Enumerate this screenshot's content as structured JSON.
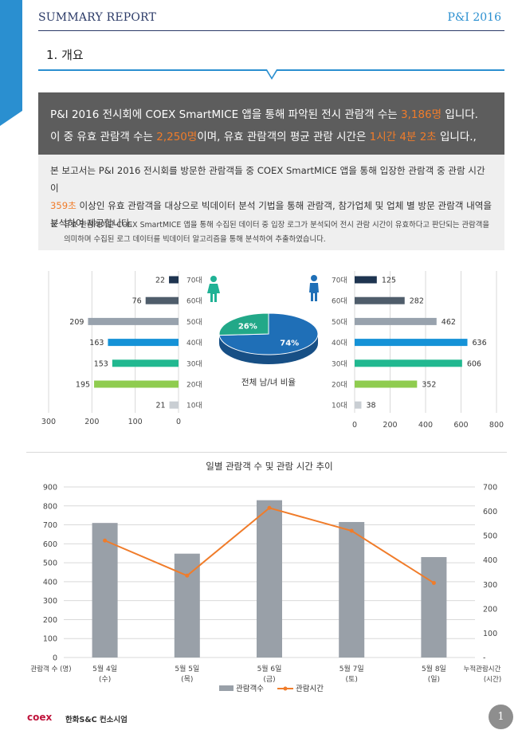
{
  "header": {
    "title": "SUMMARY REPORT",
    "right": "P&I 2016"
  },
  "section": {
    "title": "1. 개요"
  },
  "summary": {
    "line1_a": "P&I 2016 전시회에 COEX SmartMICE 앱을 통해 파악된 전시 관람객 수는 ",
    "line1_hl": "3,186명",
    "line1_b": " 입니다.",
    "line2_a": "이 중 유효 관람객 수는 ",
    "line2_hl1": "2,250명",
    "line2_b": "이며, 유효 관람객의 평균 관람 시간은 ",
    "line2_hl2": "1시간 4분 2초",
    "line2_c": " 입니다.,"
  },
  "body": {
    "p1_a": "본 보고서는 P&I 2016 전시회를 방문한 관람객들 중 COEX SmartMICE 앱을 통해 입장한 관람객 중 관람 시간이",
    "p2_hl": "359초",
    "p2_b": " 이상인 유효 관람객을 대상으로 빅데이터 분석 기법을 통해 관람객,  참가업체 및 업체 별 방문 관람객 내역을",
    "p3": "분석하여 제공합니다.",
    "note_mark": "※",
    "note_line1": "유효 관람객이란 COEX SmartMICE 앱을 통해 수집된 데이터 중 입장 로그가 분석되어 전시 관람 시간이 유효하다고 판단되는 관람객을",
    "note_line2": "의미하며 수집된 로그 데이터를 빅데이터 알고리즘을 통해 분석하여 추출하였습니다."
  },
  "colors": {
    "age": [
      "#1e3450",
      "#4f5d6b",
      "#98a2ad",
      "#1592d7",
      "#21b890",
      "#8fcc4f",
      "#c9ced3"
    ],
    "accent": "#2a8fd0",
    "orange": "#f07c2a",
    "gray_bar": "#99a0a8"
  },
  "chart_data": [
    {
      "type": "bar",
      "orientation": "horizontal",
      "title": "",
      "categories": [
        "70대",
        "60대",
        "50대",
        "40대",
        "30대",
        "20대",
        "10대"
      ],
      "values": [
        22,
        76,
        209,
        163,
        153,
        195,
        21
      ],
      "xlim": [
        0,
        300
      ],
      "xticks": [
        "300",
        "200",
        "100",
        "0"
      ],
      "icon": "female-icon"
    },
    {
      "type": "pie",
      "title": "전체 남/녀 비율",
      "slices": [
        {
          "label": "74%",
          "value": 74,
          "color": "#1f6fb7"
        },
        {
          "label": "26%",
          "value": 26,
          "color": "#22a888"
        }
      ]
    },
    {
      "type": "bar",
      "orientation": "horizontal",
      "title": "",
      "categories": [
        "70대",
        "60대",
        "50대",
        "40대",
        "30대",
        "20대",
        "10대"
      ],
      "values": [
        125,
        282,
        462,
        636,
        606,
        352,
        38
      ],
      "xlim": [
        0,
        800
      ],
      "xticks": [
        "0",
        "200",
        "400",
        "600",
        "800"
      ],
      "icon": "male-icon"
    },
    {
      "type": "bar+line",
      "title": "일별 관람객 수 및 관람 시간 추이",
      "categories": [
        {
          "l1": "5월 4일",
          "l2": "(수)"
        },
        {
          "l1": "5월 5일",
          "l2": "(목)"
        },
        {
          "l1": "5월 6일",
          "l2": "(금)"
        },
        {
          "l1": "5월 7일",
          "l2": "(토)"
        },
        {
          "l1": "5월 8일",
          "l2": "(일)"
        }
      ],
      "bars": {
        "name": "관람객수",
        "values": [
          710,
          548,
          830,
          715,
          530
        ]
      },
      "line": {
        "name": "관람시간",
        "values": [
          480,
          336,
          614,
          520,
          306
        ]
      },
      "ylim_left": [
        0,
        900
      ],
      "yticks_left": [
        "0",
        "100",
        "200",
        "300",
        "400",
        "500",
        "600",
        "700",
        "800",
        "900"
      ],
      "ylim_right": [
        0,
        700
      ],
      "yticks_right": [
        "-",
        "100",
        "200",
        "300",
        "400",
        "500",
        "600",
        "700"
      ],
      "ylabel_left": "관람객 수 (명)",
      "ylabel_right_1": "누적관람시간",
      "ylabel_right_2": "(시간)"
    }
  ],
  "footer": {
    "logo": "coex",
    "org": "한화S&C 컨소시엄",
    "page": "1"
  }
}
